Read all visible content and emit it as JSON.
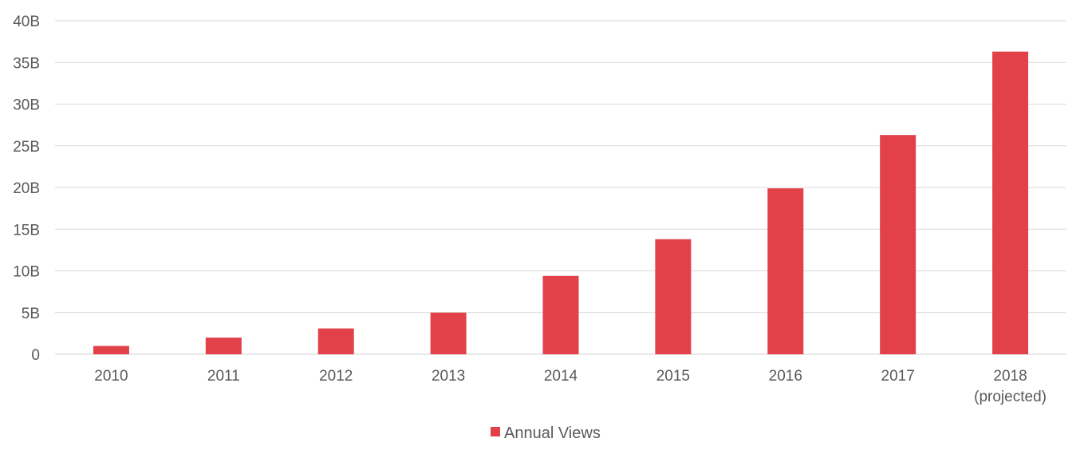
{
  "chart_data": {
    "type": "bar",
    "title": "",
    "xlabel": "",
    "ylabel": "",
    "categories": [
      [
        "2010"
      ],
      [
        "2011"
      ],
      [
        "2012"
      ],
      [
        "2013"
      ],
      [
        "2014"
      ],
      [
        "2015"
      ],
      [
        "2016"
      ],
      [
        "2017"
      ],
      [
        "2018",
        "(projected)"
      ]
    ],
    "series": [
      {
        "name": "Annual Views",
        "color": "#E2414A",
        "values": [
          1.0,
          2.0,
          3.1,
          5.0,
          9.4,
          13.8,
          19.9,
          26.3,
          36.3
        ]
      }
    ],
    "ylim": [
      0,
      40
    ],
    "yticks": [
      0,
      5,
      10,
      15,
      20,
      25,
      30,
      35,
      40
    ],
    "ytick_labels": [
      "0",
      "5B",
      "10B",
      "15B",
      "20B",
      "25B",
      "30B",
      "35B",
      "40B"
    ],
    "grid": true,
    "legend": {
      "placement": "bottom-center",
      "label": "Annual Views"
    },
    "colors": {
      "bar": "#E2414A",
      "grid": "#D9D9D9",
      "text": "#595959"
    }
  }
}
